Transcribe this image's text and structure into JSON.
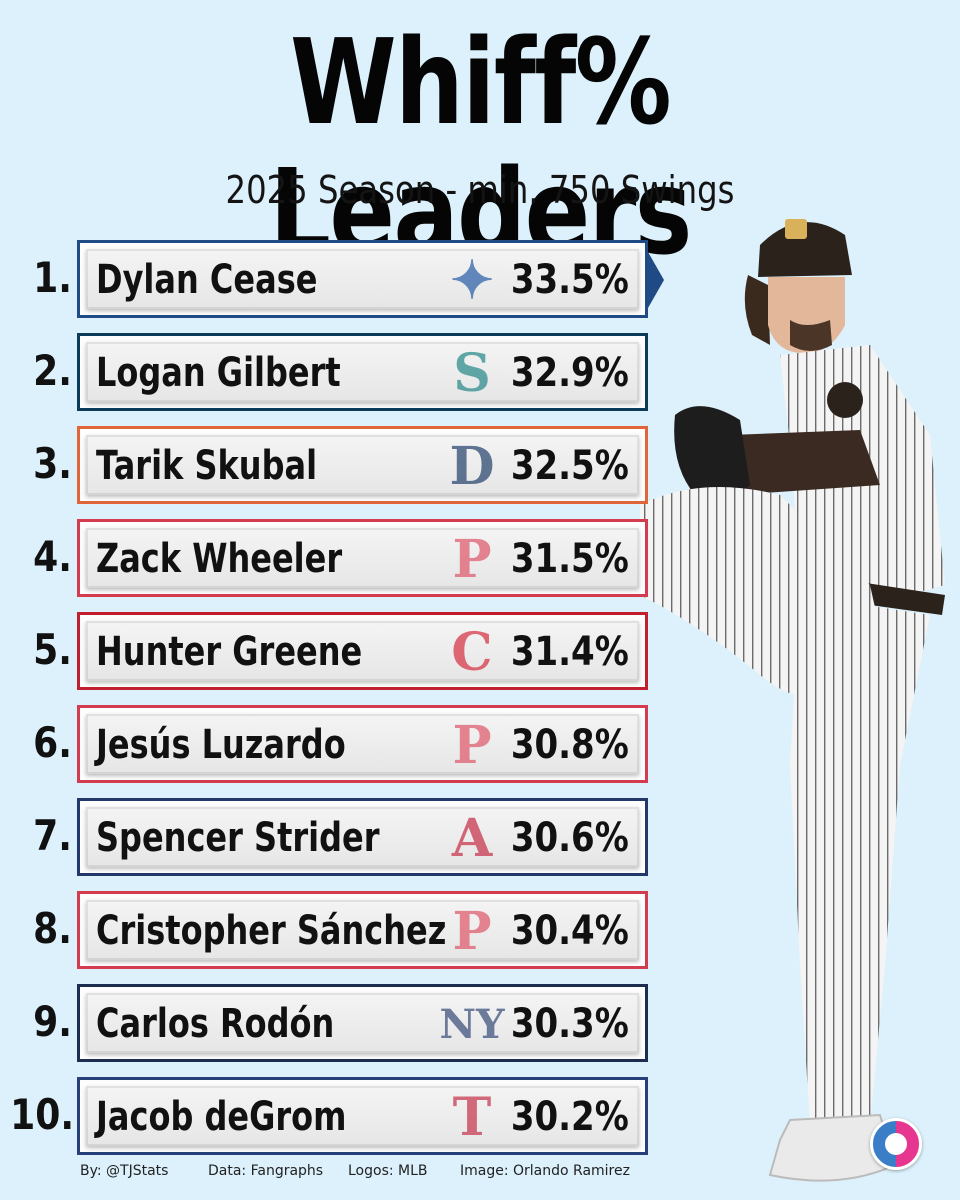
{
  "header": {
    "title": "Whiff% Leaders",
    "subtitle": "2025 Season - min. 750 Swings"
  },
  "leaders": [
    {
      "rank": "1.",
      "name": "Dylan Cease",
      "pct": "33.5%",
      "team_icon": "blue-jays-logo-icon",
      "color": "#1f4a86",
      "logo_color": "#2b5fa8",
      "logo_glyph": "✦"
    },
    {
      "rank": "2.",
      "name": "Logan Gilbert",
      "pct": "32.9%",
      "team_icon": "mariners-logo-icon",
      "color": "#0c3b5a",
      "logo_color": "#2a8a8a",
      "logo_glyph": "S"
    },
    {
      "rank": "3.",
      "name": "Tarik Skubal",
      "pct": "32.5%",
      "team_icon": "tigers-logo-icon",
      "color": "#e0663a",
      "logo_color": "#27456e",
      "logo_glyph": "D"
    },
    {
      "rank": "4.",
      "name": "Zack Wheeler",
      "pct": "31.5%",
      "team_icon": "phillies-logo-icon",
      "color": "#d33b4e",
      "logo_color": "#e05a6c",
      "logo_glyph": "P"
    },
    {
      "rank": "5.",
      "name": "Hunter Greene",
      "pct": "31.4%",
      "team_icon": "reds-logo-icon",
      "color": "#c21f2e",
      "logo_color": "#d63343",
      "logo_glyph": "C"
    },
    {
      "rank": "6.",
      "name": "Jesús Luzardo",
      "pct": "30.8%",
      "team_icon": "phillies-logo-icon",
      "color": "#d33b4e",
      "logo_color": "#e05a6c",
      "logo_glyph": "P"
    },
    {
      "rank": "7.",
      "name": "Spencer Strider",
      "pct": "30.6%",
      "team_icon": "braves-logo-icon",
      "color": "#23386a",
      "logo_color": "#c6324a",
      "logo_glyph": "A"
    },
    {
      "rank": "8.",
      "name": "Cristopher Sánchez",
      "pct": "30.4%",
      "team_icon": "phillies-logo-icon",
      "color": "#d33b4e",
      "logo_color": "#e05a6c",
      "logo_glyph": "P"
    },
    {
      "rank": "9.",
      "name": "Carlos Rodón",
      "pct": "30.3%",
      "team_icon": "yankees-logo-icon",
      "color": "#1c2d4f",
      "logo_color": "#3a4f7a",
      "logo_glyph": "NY"
    },
    {
      "rank": "10.",
      "name": "Jacob deGrom",
      "pct": "30.2%",
      "team_icon": "rangers-logo-icon",
      "color": "#27407a",
      "logo_color": "#c5364c",
      "logo_glyph": "T"
    }
  ],
  "footer": {
    "by": "By: @TJStats",
    "data": "Data: Fangraphs",
    "logos": "Logos: MLB",
    "image": "Image: Orlando Ramirez"
  }
}
